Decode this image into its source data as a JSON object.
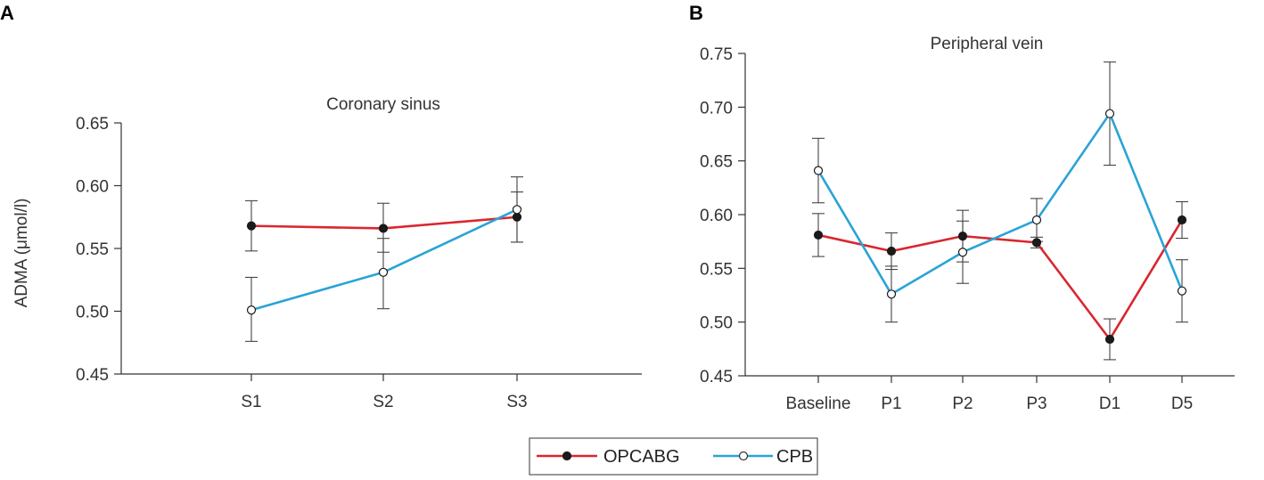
{
  "panel_labels": [
    "A",
    "B"
  ],
  "series_styles": [
    {
      "name": "OPCABG",
      "color": "#d9262e",
      "marker": "filled-circle",
      "marker_color": "#1a1a1a"
    },
    {
      "name": "CPB",
      "color": "#2aa3d6",
      "marker": "open-circle",
      "marker_color": "#ffffff"
    }
  ],
  "legend": {
    "entries": [
      "OPCABG",
      "CPB"
    ],
    "placement": "bottom-center"
  },
  "chart_data": [
    {
      "type": "line",
      "panel": "A",
      "title": "Coronary sinus",
      "xlabel": "",
      "ylabel": "ADMA (μmol/l)",
      "categories": [
        "S1",
        "S2",
        "S3"
      ],
      "ylim": [
        0.45,
        0.65
      ],
      "yticks": [
        "0.45",
        "0.50",
        "0.55",
        "0.60",
        "0.65"
      ],
      "grid": false,
      "series": [
        {
          "name": "OPCABG",
          "values": [
            0.568,
            0.566,
            0.575
          ],
          "err_low": [
            0.548,
            0.547,
            0.555
          ],
          "err_high": [
            0.588,
            0.586,
            0.595
          ]
        },
        {
          "name": "CPB",
          "values": [
            0.501,
            0.531,
            0.581
          ],
          "err_low": [
            0.476,
            0.502,
            0.555
          ],
          "err_high": [
            0.527,
            0.558,
            0.607
          ]
        }
      ]
    },
    {
      "type": "line",
      "panel": "B",
      "title": "Peripheral vein",
      "xlabel": "",
      "ylabel": "",
      "categories": [
        "Baseline",
        "P1",
        "P2",
        "P3",
        "D1",
        "D5"
      ],
      "ylim": [
        0.45,
        0.75
      ],
      "yticks": [
        "0.45",
        "0.50",
        "0.55",
        "0.60",
        "0.65",
        "0.70",
        "0.75"
      ],
      "grid": false,
      "series": [
        {
          "name": "OPCABG",
          "values": [
            0.581,
            0.566,
            0.58,
            0.574,
            0.484,
            0.595
          ],
          "err_low": [
            0.561,
            0.549,
            0.556,
            0.569,
            0.465,
            0.578
          ],
          "err_high": [
            0.601,
            0.583,
            0.604,
            0.579,
            0.503,
            0.612
          ]
        },
        {
          "name": "CPB",
          "values": [
            0.641,
            0.526,
            0.565,
            0.595,
            0.694,
            0.529
          ],
          "err_low": [
            0.611,
            0.5,
            0.536,
            0.575,
            0.646,
            0.5
          ],
          "err_high": [
            0.671,
            0.552,
            0.594,
            0.615,
            0.742,
            0.558
          ]
        }
      ]
    }
  ]
}
